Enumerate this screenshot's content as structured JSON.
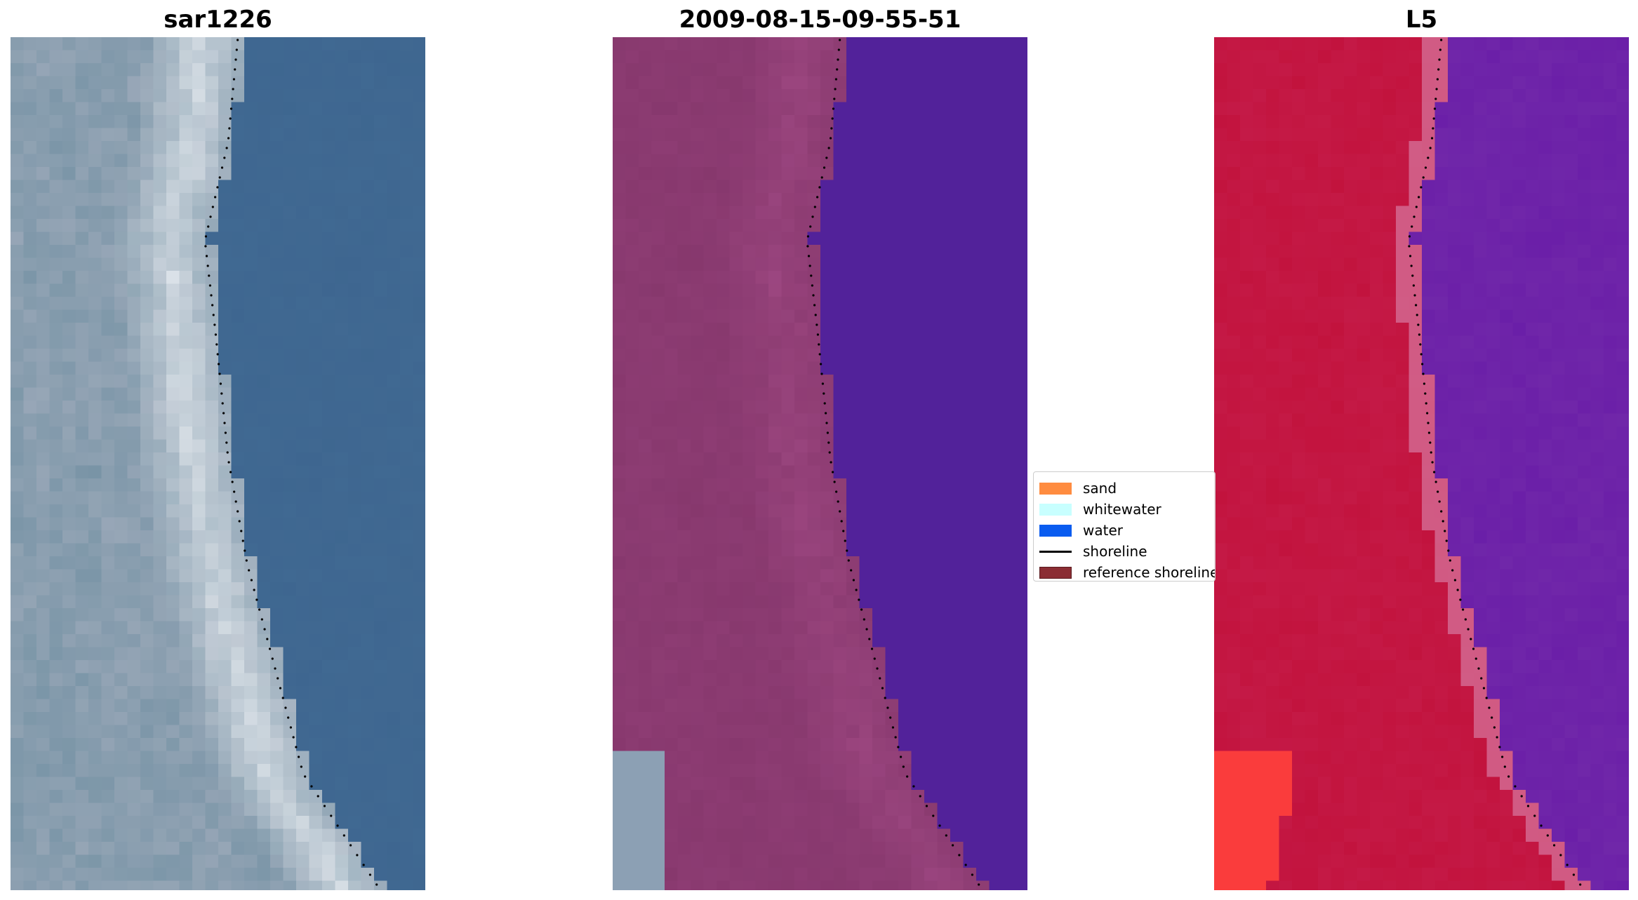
{
  "panels": [
    {
      "title": "sar1226",
      "style": "rgb"
    },
    {
      "title": "2009-08-15-09-55-51",
      "style": "classified"
    },
    {
      "title": "L5",
      "style": "ndwi"
    }
  ],
  "legend": {
    "items": [
      {
        "label": "sand",
        "type": "patch",
        "color": "#ff8c40"
      },
      {
        "label": "whitewater",
        "type": "patch",
        "color": "#c8ffff"
      },
      {
        "label": "water",
        "type": "patch",
        "color": "#0a5cf0"
      },
      {
        "label": "shoreline",
        "type": "line",
        "color": "#000000"
      },
      {
        "label": "reference shoreline",
        "type": "patch",
        "color": "#8b2d34"
      }
    ]
  },
  "colors": {
    "rgb_sand": "#9aa8b8",
    "rgb_water": "#3e6690",
    "rgb_white": "#f2f5f8",
    "class_land": "#8e3d74",
    "class_water": "#52229a",
    "ndwi_land": "#c2123c",
    "ndwi_water": "#6a1ea8"
  }
}
